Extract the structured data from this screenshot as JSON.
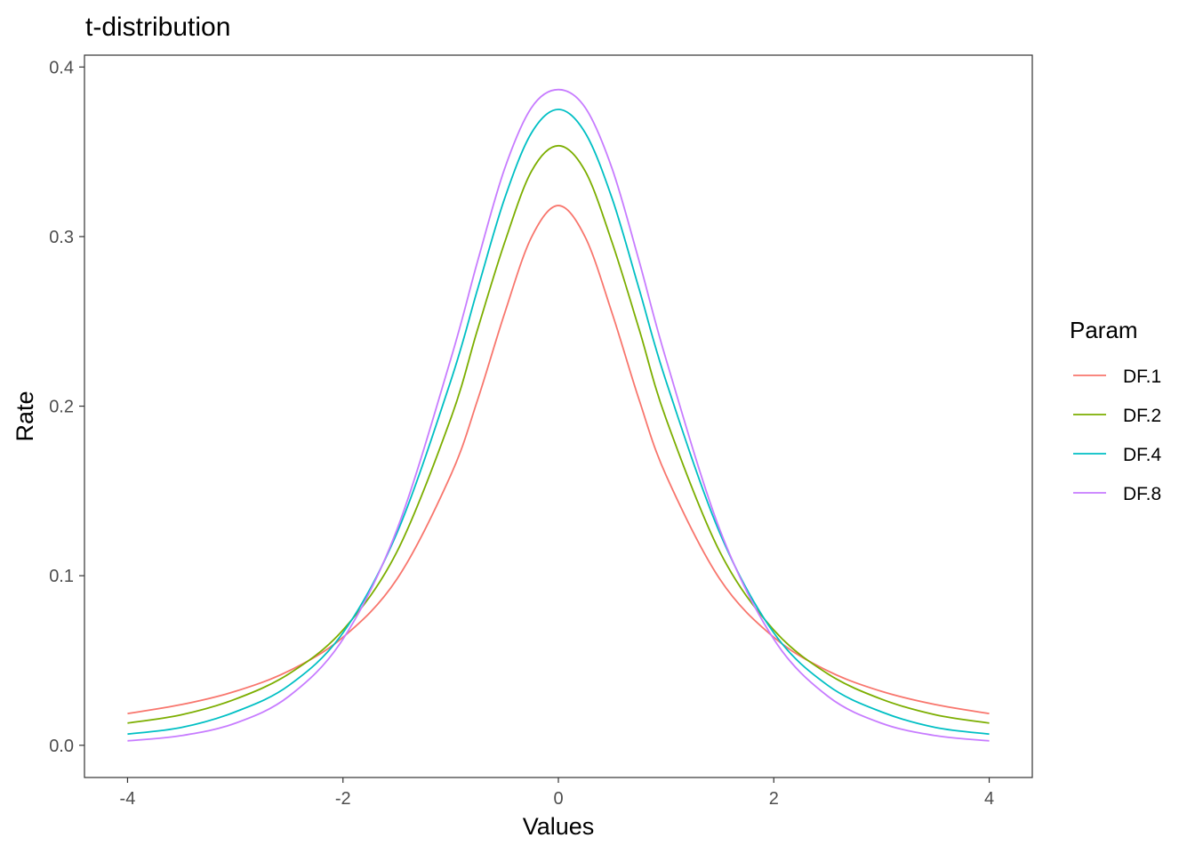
{
  "chart_data": {
    "type": "line",
    "title": "t-distribution",
    "xlabel": "Values",
    "ylabel": "Rate",
    "xlim": [
      -4.4,
      4.4
    ],
    "ylim": [
      -0.019,
      0.407
    ],
    "x_ticks": [
      -4,
      -2,
      0,
      2,
      4
    ],
    "x_tick_labels": [
      "-4",
      "-2",
      "0",
      "2",
      "4"
    ],
    "y_ticks": [
      0.0,
      0.1,
      0.2,
      0.3,
      0.4
    ],
    "y_tick_labels": [
      "0.0",
      "0.1",
      "0.2",
      "0.3",
      "0.4"
    ],
    "grid": false,
    "legend": {
      "title": "Param",
      "placement": "right"
    },
    "x": [
      -4.0,
      -3.5,
      -3.0,
      -2.5,
      -2.0,
      -1.5,
      -1.0,
      -0.75,
      -0.5,
      -0.25,
      0.0,
      0.25,
      0.5,
      0.75,
      1.0,
      1.5,
      2.0,
      2.5,
      3.0,
      3.5,
      4.0
    ],
    "series": [
      {
        "name": "DF.1",
        "color": "#F8766D",
        "values": [
          0.0187,
          0.024,
          0.0318,
          0.0439,
          0.0637,
          0.0979,
          0.1592,
          0.2037,
          0.2546,
          0.2996,
          0.3183,
          0.2996,
          0.2546,
          0.2037,
          0.1592,
          0.0979,
          0.0637,
          0.0439,
          0.0318,
          0.024,
          0.0187
        ]
      },
      {
        "name": "DF.2",
        "color": "#7CAE00",
        "values": [
          0.0131,
          0.018,
          0.0272,
          0.0422,
          0.068,
          0.114,
          0.1925,
          0.2453,
          0.2963,
          0.3385,
          0.3536,
          0.3385,
          0.2963,
          0.2453,
          0.1925,
          0.114,
          0.068,
          0.0422,
          0.0272,
          0.018,
          0.0131
        ]
      },
      {
        "name": "DF.4",
        "color": "#00BFC4",
        "values": [
          0.0066,
          0.0105,
          0.0197,
          0.0354,
          0.0663,
          0.125,
          0.2147,
          0.269,
          0.3223,
          0.3611,
          0.375,
          0.3611,
          0.3223,
          0.269,
          0.2147,
          0.125,
          0.0663,
          0.0354,
          0.0197,
          0.0105,
          0.0066
        ]
      },
      {
        "name": "DF.8",
        "color": "#C77CFF",
        "values": [
          0.0026,
          0.0057,
          0.013,
          0.029,
          0.0626,
          0.127,
          0.2276,
          0.2855,
          0.3399,
          0.376,
          0.3867,
          0.376,
          0.3399,
          0.2855,
          0.2276,
          0.127,
          0.0626,
          0.029,
          0.013,
          0.0057,
          0.0026
        ]
      }
    ]
  }
}
